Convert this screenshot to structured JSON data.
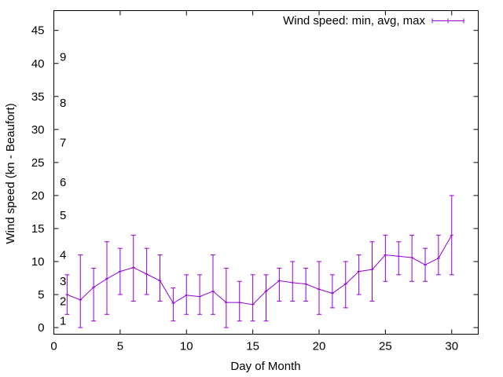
{
  "chart_data": {
    "type": "line",
    "xlabel": "Day of Month",
    "ylabel": "Wind speed (kn - Beaufort)",
    "xlim": [
      0,
      32
    ],
    "ylim": [
      -1,
      48
    ],
    "x_ticks": [
      0,
      5,
      10,
      15,
      20,
      25,
      30
    ],
    "y_ticks": [
      0,
      5,
      10,
      15,
      20,
      25,
      30,
      35,
      40,
      45
    ],
    "grid": false,
    "legend_position": "top-right",
    "beaufort_labels": [
      {
        "label": "1",
        "y": 1
      },
      {
        "label": "2",
        "y": 4
      },
      {
        "label": "3",
        "y": 7
      },
      {
        "label": "4",
        "y": 11
      },
      {
        "label": "5",
        "y": 17
      },
      {
        "label": "6",
        "y": 22
      },
      {
        "label": "7",
        "y": 28
      },
      {
        "label": "8",
        "y": 34
      },
      {
        "label": "9",
        "y": 41
      }
    ],
    "series": [
      {
        "name": "Wind speed: min, avg, max",
        "color": "#9400d3",
        "x": [
          1,
          2,
          3,
          4,
          5,
          6,
          7,
          8,
          9,
          10,
          11,
          12,
          13,
          14,
          15,
          16,
          17,
          18,
          19,
          20,
          21,
          22,
          23,
          24,
          25,
          26,
          27,
          28,
          29,
          30
        ],
        "avg": [
          5.0,
          4.2,
          6.1,
          7.4,
          8.5,
          9.1,
          8.1,
          7.1,
          3.7,
          4.9,
          4.7,
          5.5,
          3.8,
          3.8,
          3.5,
          5.5,
          7.1,
          6.8,
          6.6,
          5.8,
          5.2,
          6.6,
          8.5,
          8.8,
          11.0,
          10.8,
          10.6,
          9.5,
          10.5,
          14.0
        ],
        "min": [
          2,
          0,
          1,
          2,
          5,
          4,
          5,
          4,
          1,
          2,
          2,
          2,
          0,
          1,
          1,
          1,
          4,
          4,
          4,
          2,
          3,
          3,
          5,
          4,
          7,
          8,
          7,
          7,
          8,
          8
        ],
        "max": [
          8,
          11,
          9,
          13,
          12,
          14,
          12,
          11,
          6,
          8,
          8,
          11,
          9,
          7,
          8,
          8,
          9,
          10,
          9,
          10,
          8,
          10,
          11,
          13,
          14,
          13,
          14,
          12,
          14,
          20
        ]
      }
    ]
  }
}
